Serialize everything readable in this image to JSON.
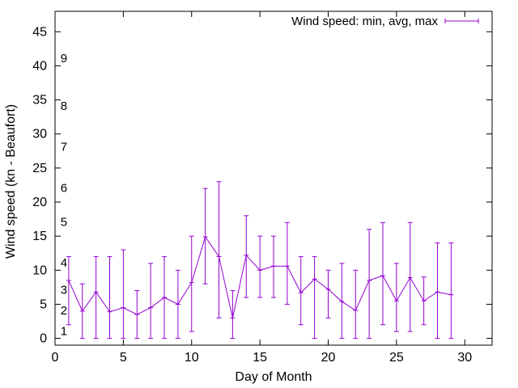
{
  "chart_data": {
    "type": "line",
    "title": "",
    "xlabel": "Day of Month",
    "ylabel": "Wind speed (kn - Beaufort)",
    "xlim": [
      0,
      32
    ],
    "ylim": [
      -1,
      48
    ],
    "x_ticks": [
      0,
      5,
      10,
      15,
      20,
      25,
      30
    ],
    "y_ticks": [
      0,
      5,
      10,
      15,
      20,
      25,
      30,
      35,
      40,
      45
    ],
    "grid": false,
    "legend_position": "top-right",
    "series": [
      {
        "name": "Wind speed: min, avg, max",
        "color": "#9400d3",
        "style": "errorbar-line",
        "x": [
          1,
          2,
          3,
          4,
          5,
          6,
          7,
          8,
          9,
          10,
          11,
          12,
          13,
          14,
          15,
          16,
          17,
          18,
          19,
          20,
          21,
          22,
          23,
          24,
          25,
          26,
          27,
          28,
          29
        ],
        "avg": [
          8.5,
          4,
          6.8,
          3.9,
          4.5,
          3.5,
          4.5,
          6,
          5,
          8.2,
          14.9,
          12,
          3,
          12.2,
          10,
          10.6,
          10.6,
          6.7,
          8.7,
          7.2,
          5.4,
          4.1,
          8.5,
          9.2,
          5.5,
          8.9,
          5.5,
          6.8,
          6.4
        ],
        "min": [
          2,
          0,
          0,
          0,
          0,
          0,
          0,
          0,
          0,
          1,
          8,
          3,
          0,
          6,
          6,
          6,
          5,
          2,
          0,
          3,
          0,
          0,
          0,
          2,
          1,
          1,
          2,
          0,
          0
        ],
        "max": [
          12,
          8,
          12,
          12,
          13,
          7,
          11,
          12,
          10,
          15,
          22,
          23,
          7,
          18,
          15,
          15,
          17,
          12,
          12,
          10,
          11,
          10,
          16,
          17,
          11,
          17,
          9,
          14,
          14
        ]
      }
    ],
    "annotations": {
      "beaufort_labels": [
        {
          "text": "1",
          "y": 1.1
        },
        {
          "text": "2",
          "y": 4.1
        },
        {
          "text": "3",
          "y": 7.1
        },
        {
          "text": "4",
          "y": 11.1
        },
        {
          "text": "5",
          "y": 17.1
        },
        {
          "text": "6",
          "y": 22.1
        },
        {
          "text": "7",
          "y": 28.1
        },
        {
          "text": "8",
          "y": 34.1
        },
        {
          "text": "9",
          "y": 41.1
        }
      ],
      "beaufort_x": 0.4
    }
  }
}
